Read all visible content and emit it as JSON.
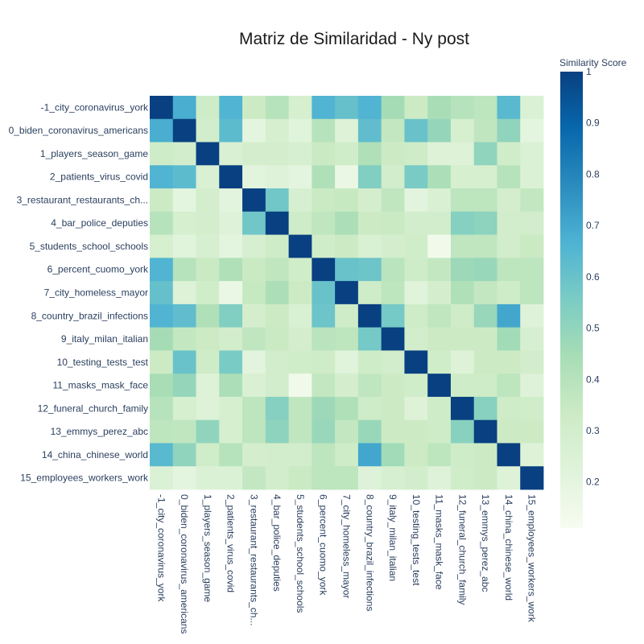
{
  "chart_data": {
    "type": "heatmap",
    "title": "Matriz de Similaridad - Ny post",
    "labels": [
      "-1_city_coronavirus_york",
      "0_biden_coronavirus_americans",
      "1_players_season_game",
      "2_patients_virus_covid",
      "3_restaurant_restaurants_ch...",
      "4_bar_police_deputies",
      "5_students_school_schools",
      "6_percent_cuomo_york",
      "7_city_homeless_mayor",
      "8_country_brazil_infections",
      "9_italy_milan_italian",
      "10_testing_tests_test",
      "11_masks_mask_face",
      "12_funeral_church_family",
      "13_emmys_perez_abc",
      "14_china_chinese_world",
      "15_employees_workers_work"
    ],
    "values": [
      [
        1.0,
        0.68,
        0.32,
        0.66,
        0.33,
        0.4,
        0.28,
        0.66,
        0.61,
        0.66,
        0.45,
        0.33,
        0.44,
        0.4,
        0.38,
        0.64,
        0.25
      ],
      [
        0.68,
        1.0,
        0.3,
        0.63,
        0.2,
        0.28,
        0.22,
        0.4,
        0.24,
        0.62,
        0.36,
        0.6,
        0.49,
        0.28,
        0.37,
        0.5,
        0.2
      ],
      [
        0.32,
        0.3,
        1.0,
        0.26,
        0.29,
        0.29,
        0.27,
        0.34,
        0.31,
        0.42,
        0.33,
        0.32,
        0.24,
        0.24,
        0.5,
        0.31,
        0.25
      ],
      [
        0.66,
        0.63,
        0.26,
        1.0,
        0.21,
        0.23,
        0.2,
        0.42,
        0.17,
        0.54,
        0.3,
        0.56,
        0.43,
        0.28,
        0.28,
        0.4,
        0.25
      ],
      [
        0.33,
        0.2,
        0.29,
        0.21,
        1.0,
        0.58,
        0.27,
        0.34,
        0.35,
        0.29,
        0.37,
        0.21,
        0.26,
        0.38,
        0.38,
        0.29,
        0.36
      ],
      [
        0.4,
        0.28,
        0.29,
        0.23,
        0.58,
        1.0,
        0.32,
        0.37,
        0.43,
        0.33,
        0.34,
        0.3,
        0.3,
        0.53,
        0.51,
        0.3,
        0.3
      ],
      [
        0.28,
        0.22,
        0.27,
        0.2,
        0.27,
        0.32,
        1.0,
        0.31,
        0.33,
        0.26,
        0.29,
        0.31,
        0.14,
        0.37,
        0.37,
        0.3,
        0.34
      ],
      [
        0.66,
        0.4,
        0.34,
        0.42,
        0.34,
        0.37,
        0.31,
        1.0,
        0.6,
        0.59,
        0.39,
        0.32,
        0.36,
        0.47,
        0.48,
        0.38,
        0.38
      ],
      [
        0.61,
        0.24,
        0.31,
        0.17,
        0.35,
        0.43,
        0.33,
        0.6,
        1.0,
        0.32,
        0.38,
        0.22,
        0.29,
        0.42,
        0.36,
        0.32,
        0.38
      ],
      [
        0.66,
        0.62,
        0.42,
        0.54,
        0.29,
        0.33,
        0.26,
        0.59,
        0.32,
        1.0,
        0.57,
        0.32,
        0.37,
        0.32,
        0.48,
        0.7,
        0.23
      ],
      [
        0.45,
        0.36,
        0.33,
        0.3,
        0.37,
        0.34,
        0.29,
        0.39,
        0.38,
        0.57,
        1.0,
        0.3,
        0.33,
        0.33,
        0.33,
        0.46,
        0.27
      ],
      [
        0.33,
        0.6,
        0.32,
        0.56,
        0.21,
        0.3,
        0.31,
        0.32,
        0.22,
        0.32,
        0.3,
        1.0,
        0.31,
        0.24,
        0.33,
        0.33,
        0.3
      ],
      [
        0.44,
        0.49,
        0.24,
        0.43,
        0.26,
        0.3,
        0.14,
        0.36,
        0.29,
        0.37,
        0.33,
        0.31,
        1.0,
        0.32,
        0.32,
        0.38,
        0.23
      ],
      [
        0.4,
        0.28,
        0.24,
        0.28,
        0.38,
        0.53,
        0.37,
        0.47,
        0.42,
        0.32,
        0.33,
        0.24,
        0.32,
        1.0,
        0.52,
        0.32,
        0.31
      ],
      [
        0.38,
        0.37,
        0.5,
        0.28,
        0.38,
        0.51,
        0.37,
        0.48,
        0.36,
        0.48,
        0.33,
        0.33,
        0.32,
        0.52,
        1.0,
        0.33,
        0.33
      ],
      [
        0.64,
        0.5,
        0.31,
        0.4,
        0.29,
        0.3,
        0.3,
        0.38,
        0.32,
        0.7,
        0.46,
        0.33,
        0.38,
        0.32,
        0.33,
        1.0,
        0.24
      ],
      [
        0.25,
        0.2,
        0.25,
        0.25,
        0.36,
        0.3,
        0.34,
        0.38,
        0.38,
        0.23,
        0.27,
        0.3,
        0.23,
        0.31,
        0.33,
        0.24,
        1.0
      ]
    ],
    "colorscale": "GnBu",
    "colorbar": {
      "title": "Similarity Score",
      "min": 0.11,
      "max": 1.0,
      "ticks": [
        0.2,
        0.3,
        0.4,
        0.5,
        0.6,
        0.7,
        0.8,
        0.9,
        1
      ]
    }
  }
}
